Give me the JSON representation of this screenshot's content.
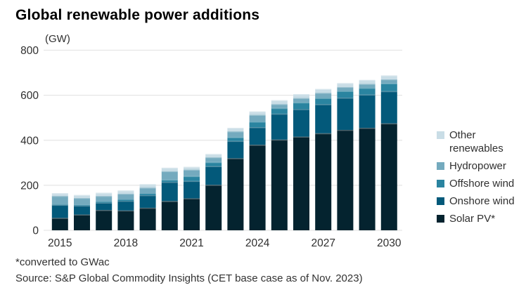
{
  "title": "Global renewable power additions",
  "chart_data": {
    "type": "bar",
    "stacked": true,
    "title": "Global renewable power additions",
    "unit_label": "(GW)",
    "ylabel": "GW",
    "ylim": [
      0,
      800
    ],
    "y_ticks": [
      0,
      200,
      400,
      600,
      800
    ],
    "grid": "horizontal",
    "legend_position": "right",
    "categories": [
      2015,
      2016,
      2017,
      2018,
      2019,
      2020,
      2021,
      2022,
      2023,
      2024,
      2025,
      2026,
      2027,
      2028,
      2029,
      2030
    ],
    "x_tick_labels": [
      "2015",
      "2018",
      "2021",
      "2024",
      "2027",
      "2030"
    ],
    "series": [
      {
        "name": "Solar PV*",
        "color": "#04232f",
        "values": [
          55,
          70,
          90,
          88,
          100,
          130,
          142,
          202,
          320,
          380,
          403,
          416,
          431,
          446,
          455,
          475
        ]
      },
      {
        "name": "Onshore wind",
        "color": "#03597a",
        "values": [
          58,
          40,
          33,
          43,
          56,
          85,
          77,
          83,
          77,
          78,
          115,
          122,
          129,
          143,
          148,
          143
        ]
      },
      {
        "name": "Offshore wind",
        "color": "#2a84a0",
        "values": [
          2,
          3,
          4,
          5,
          6,
          10,
          22,
          18,
          17,
          25,
          25,
          30,
          28,
          30,
          30,
          35
        ]
      },
      {
        "name": "Hydropower",
        "color": "#74aabe",
        "values": [
          38,
          31,
          26,
          27,
          28,
          38,
          29,
          22,
          26,
          30,
          18,
          20,
          23,
          18,
          18,
          18
        ]
      },
      {
        "name": "Other renewables",
        "color": "#c9dde6",
        "values": [
          12,
          13,
          14,
          14,
          15,
          15,
          12,
          14,
          15,
          15,
          17,
          17,
          17,
          17,
          17,
          17
        ]
      }
    ],
    "totals": [
      165,
      157,
      167,
      177,
      205,
      278,
      282,
      339,
      455,
      528,
      578,
      605,
      628,
      654,
      668,
      688
    ]
  },
  "legend_order_top_to_bottom": [
    "Other renewables",
    "Hydropower",
    "Offshore wind",
    "Onshore wind",
    "Solar PV*"
  ],
  "footnotes": {
    "note1": "*converted to GWac",
    "note2": "Source: S&P Global Commodity Insights (CET base case as of Nov. 2023)"
  },
  "colors": {
    "axis_text": "#2f2f2f",
    "gridline": "#e6e6e6",
    "footnote_text": "#323232",
    "title_text": "#000000"
  }
}
